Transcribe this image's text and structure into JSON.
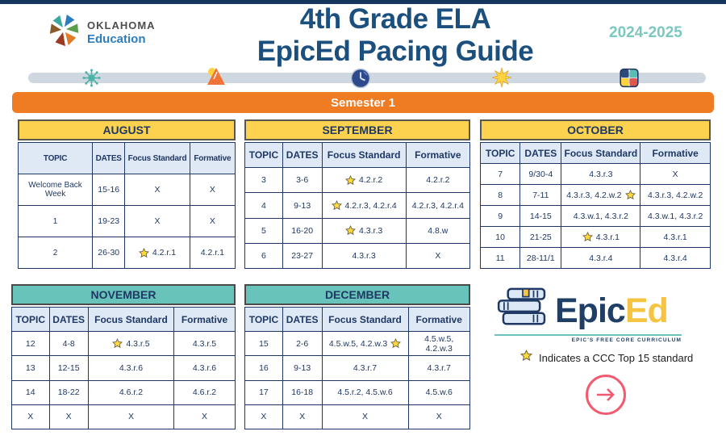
{
  "page": {
    "title_line1": "4th Grade ELA",
    "title_line2": "EpicEd Pacing Guide",
    "school_year": "2024-2025"
  },
  "org_logo": {
    "org": "OKLAHOMA",
    "dept": "Education"
  },
  "banner": {
    "label": "Semester 1"
  },
  "table_columns": [
    "TOPIC",
    "DATES",
    "Focus Standard",
    "Formative"
  ],
  "months": [
    {
      "name": "AUGUST",
      "theme": "yellow",
      "rows": [
        {
          "topic": "Welcome Back Week",
          "dates": "15-16",
          "focus": "X",
          "formative": "X",
          "star": null
        },
        {
          "topic": "1",
          "dates": "19-23",
          "focus": "X",
          "formative": "X",
          "star": null
        },
        {
          "topic": "2",
          "dates": "26-30",
          "focus": "4.2.r.1",
          "formative": "4.2.r.1",
          "star": "before"
        }
      ]
    },
    {
      "name": "SEPTEMBER",
      "theme": "yellow",
      "rows": [
        {
          "topic": "3",
          "dates": "3-6",
          "focus": "4.2.r.2",
          "formative": "4.2.r.2",
          "star": "before"
        },
        {
          "topic": "4",
          "dates": "9-13",
          "focus": "4.2.r.3, 4.2.r.4",
          "formative": "4.2.r.3, 4.2.r.4",
          "star": "before"
        },
        {
          "topic": "5",
          "dates": "16-20",
          "focus": "4.3.r.3",
          "formative": "4.8.w",
          "star": "before"
        },
        {
          "topic": "6",
          "dates": "23-27",
          "focus": "4.3.r.3",
          "formative": "X",
          "star": null
        }
      ]
    },
    {
      "name": "OCTOBER",
      "theme": "yellow",
      "rows": [
        {
          "topic": "7",
          "dates": "9/30-4",
          "focus": "4.3.r.3",
          "formative": "X",
          "star": null
        },
        {
          "topic": "8",
          "dates": "7-11",
          "focus": "4.3.r.3, 4.2.w.2",
          "formative": "4.3.r.3, 4.2.w.2",
          "star": "after"
        },
        {
          "topic": "9",
          "dates": "14-15",
          "focus": "4.3.w.1, 4.3.r.2",
          "formative": "4.3.w.1, 4.3.r.2",
          "star": null
        },
        {
          "topic": "10",
          "dates": "21-25",
          "focus": "4.3.r.1",
          "formative": "4.3.r.1",
          "star": "before"
        },
        {
          "topic": "11",
          "dates": "28-11/1",
          "focus": "4.3.r.4",
          "formative": "4.3.r.4",
          "star": null
        }
      ]
    },
    {
      "name": "NOVEMBER",
      "theme": "teal",
      "rows": [
        {
          "topic": "12",
          "dates": "4-8",
          "focus": "4.3.r.5",
          "formative": "4.3.r.5",
          "star": "before"
        },
        {
          "topic": "13",
          "dates": "12-15",
          "focus": "4.3.r.6",
          "formative": "4.3.r.6",
          "star": null
        },
        {
          "topic": "14",
          "dates": "18-22",
          "focus": "4.6.r.2",
          "formative": "4.6.r.2",
          "star": null
        },
        {
          "topic": "X",
          "dates": "X",
          "focus": "X",
          "formative": "X",
          "star": null
        }
      ]
    },
    {
      "name": "DECEMBER",
      "theme": "teal",
      "rows": [
        {
          "topic": "15",
          "dates": "2-6",
          "focus": "4.5.w.5, 4.2.w.3",
          "formative": "4.5.w.5, 4.2.w.3",
          "star": "after"
        },
        {
          "topic": "16",
          "dates": "9-13",
          "focus": "4.3.r.7",
          "formative": "4.3.r.7",
          "star": null
        },
        {
          "topic": "17",
          "dates": "16-18",
          "focus": "4.5.r.2, 4.5.w.6",
          "formative": "4.5.w.6",
          "star": null
        },
        {
          "topic": "X",
          "dates": "X",
          "focus": "X",
          "formative": "X",
          "star": null
        }
      ]
    }
  ],
  "epiced_logo": {
    "brand_primary": "Epic",
    "brand_secondary": "Ed",
    "tagline": "EPIC'S FREE CORE CURRICULUM"
  },
  "legend": {
    "text": "Indicates a CCC Top 15 standard"
  },
  "colors": {
    "navy": "#1f3864",
    "title_blue": "#1b4f7e",
    "banner_orange": "#ef7b22",
    "month_yellow": "#fcd24f",
    "month_teal": "#68c3ba",
    "column_header_blue": "#dfe9f6",
    "year_teal": "#7cc7bf",
    "arrow_pink": "#f25a70",
    "star_gold": "#ffd83d",
    "timeline_gray": "#cfd8e0"
  }
}
